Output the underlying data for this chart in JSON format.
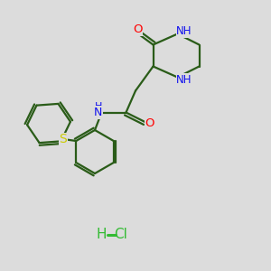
{
  "bg_color": "#dcdcdc",
  "bond_color": "#2a5c18",
  "bond_width": 1.6,
  "atom_colors": {
    "O": "#ff0000",
    "N": "#1010ee",
    "S": "#cccc00",
    "C": "#2a5c18",
    "H": "#2a5c18",
    "Cl": "#33bb33"
  },
  "font_size": 8.5
}
